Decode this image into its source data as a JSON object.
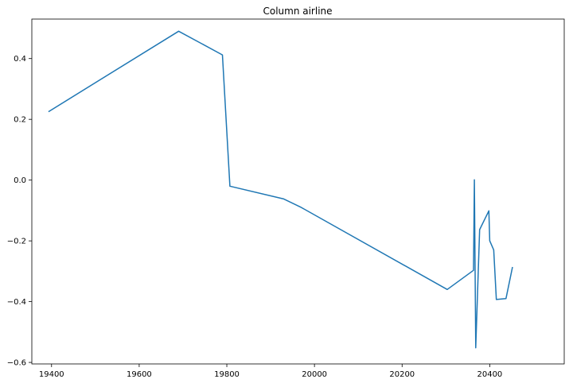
{
  "chart_data": {
    "type": "line",
    "title": "Column airline",
    "xlabel": "",
    "ylabel": "",
    "xlim": [
      19355,
      20570
    ],
    "ylim": [
      -0.605,
      0.53
    ],
    "grid": false,
    "xticks": [
      19400,
      19600,
      19800,
      20000,
      20200,
      20400
    ],
    "yticks": [
      -0.6,
      -0.4,
      -0.2,
      0.0,
      0.2,
      0.4
    ],
    "ytick_labels": [
      "−0.6",
      "−0.4",
      "−0.2",
      "0.0",
      "0.2",
      "0.4"
    ],
    "line_color": "#1f77b4",
    "series": [
      {
        "x": [
          19393,
          19690,
          19790,
          19807,
          19930,
          19970,
          20303,
          20363,
          20365,
          20368,
          20377,
          20398,
          20400,
          20409,
          20415,
          20437,
          20452
        ],
        "y": [
          0.225,
          0.49,
          0.412,
          -0.02,
          -0.062,
          -0.09,
          -0.36,
          -0.297,
          0.001,
          -0.552,
          -0.163,
          -0.101,
          -0.2,
          -0.23,
          -0.393,
          -0.39,
          -0.286
        ]
      }
    ]
  }
}
